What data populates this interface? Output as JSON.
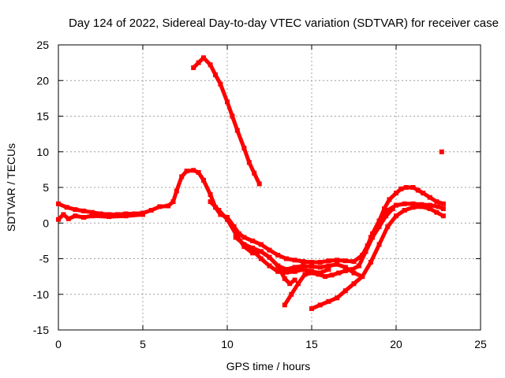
{
  "chart_data": {
    "type": "scatter",
    "title": "Day 124 of 2022, Sidereal Day-to-day VTEC variation (SDTVAR) for receiver case",
    "xlabel": "GPS time / hours",
    "ylabel": "SDTVAR / TECUs",
    "xlim": [
      0,
      25
    ],
    "ylim": [
      -15,
      25
    ],
    "xticks": [
      0,
      5,
      10,
      15,
      20,
      25
    ],
    "yticks": [
      -15,
      -10,
      -5,
      0,
      5,
      10,
      15,
      20,
      25
    ],
    "xtick_labels": [
      "0",
      "5",
      "10",
      "15",
      "20",
      "25"
    ],
    "ytick_labels": [
      "-15",
      "-10",
      "-5",
      "0",
      "5",
      "10",
      "15",
      "20",
      "25"
    ],
    "grid": true,
    "marker_color": "#ff0000",
    "series": [
      {
        "name": "track-main",
        "x": [
          0.0,
          0.5,
          1.0,
          1.5,
          2.0,
          2.5,
          3.0,
          3.5,
          4.0,
          4.5,
          5.0,
          5.5,
          6.0,
          6.5,
          6.8,
          7.0,
          7.3,
          7.6,
          8.0,
          8.3,
          8.6,
          9.0,
          9.3,
          9.6,
          10.0,
          10.4,
          10.7,
          11.0,
          11.5,
          12.0,
          12.5,
          13.0,
          13.5,
          14.0,
          14.5,
          15.0,
          15.5,
          16.0,
          16.5,
          17.0,
          17.5,
          18.0,
          18.3,
          18.6,
          19.0,
          19.3,
          19.6,
          20.0,
          20.3,
          20.6,
          21.0,
          21.3,
          21.6,
          22.0,
          22.4,
          22.8
        ],
        "y": [
          2.7,
          2.2,
          1.9,
          1.7,
          1.5,
          1.3,
          1.2,
          1.2,
          1.3,
          1.3,
          1.4,
          1.8,
          2.3,
          2.4,
          3.0,
          4.5,
          6.5,
          7.3,
          7.4,
          7.1,
          6.0,
          4.0,
          2.2,
          1.2,
          0.8,
          -0.5,
          -1.5,
          -2.0,
          -2.5,
          -3.0,
          -3.8,
          -4.5,
          -5.0,
          -5.2,
          -5.4,
          -5.5,
          -5.5,
          -5.3,
          -5.2,
          -5.3,
          -5.4,
          -4.5,
          -3.2,
          -1.5,
          0.3,
          2.0,
          3.3,
          4.2,
          4.8,
          5.0,
          5.0,
          4.6,
          4.2,
          3.6,
          3.0,
          2.7
        ]
      },
      {
        "name": "track-lower-a",
        "x": [
          0.0,
          0.3,
          0.6,
          1.0,
          1.5,
          2.0,
          3.0,
          4.0,
          5.0
        ],
        "y": [
          0.5,
          1.2,
          0.6,
          1.0,
          0.8,
          1.0,
          0.9,
          1.0,
          1.2
        ]
      },
      {
        "name": "track-drop-a",
        "x": [
          9.0,
          9.5,
          10.0,
          10.5,
          11.0,
          11.5,
          12.0,
          12.5,
          13.0,
          13.4,
          13.7,
          14.0
        ],
        "y": [
          3.0,
          1.8,
          0.5,
          -1.5,
          -3.3,
          -4.2,
          -4.0,
          -4.8,
          -6.0,
          -7.8,
          -8.5,
          -8.0
        ]
      },
      {
        "name": "track-drop-b",
        "x": [
          10.5,
          11.0,
          11.5,
          12.0,
          12.5,
          13.0,
          13.5,
          14.0,
          14.5,
          15.0,
          15.5,
          16.0,
          16.5,
          17.0,
          17.5,
          18.0
        ],
        "y": [
          -2.0,
          -3.0,
          -3.5,
          -4.0,
          -4.8,
          -6.0,
          -6.5,
          -6.2,
          -6.0,
          -6.1,
          -6.2,
          -6.0,
          -5.8,
          -6.2,
          -7.0,
          -7.5
        ]
      },
      {
        "name": "track-drop-c",
        "x": [
          11.5,
          12.0,
          12.5,
          13.0,
          13.5,
          14.0,
          14.5,
          15.0,
          15.5,
          16.0
        ],
        "y": [
          -3.8,
          -5.0,
          -6.0,
          -6.8,
          -6.9,
          -6.8,
          -6.5,
          -6.8,
          -7.0,
          -6.5
        ]
      },
      {
        "name": "track-deep",
        "x": [
          13.4,
          13.8,
          14.2,
          14.6,
          15.0,
          15.4,
          15.8,
          16.2,
          16.6,
          17.0,
          17.4,
          17.8,
          18.2,
          18.6,
          19.0,
          19.4,
          19.8
        ],
        "y": [
          -11.5,
          -10.0,
          -8.5,
          -7.2,
          -7.0,
          -7.2,
          -7.5,
          -7.3,
          -7.0,
          -6.7,
          -6.5,
          -6.0,
          -4.0,
          -2.0,
          -0.5,
          1.0,
          2.0
        ]
      },
      {
        "name": "track-recovery-low",
        "x": [
          15.0,
          15.5,
          16.0,
          16.5,
          17.0,
          17.5,
          18.0,
          18.5,
          19.0,
          19.5,
          20.0,
          20.5,
          21.0,
          21.5,
          22.0,
          22.4,
          22.8
        ],
        "y": [
          -12.0,
          -11.5,
          -11.0,
          -10.5,
          -9.5,
          -8.5,
          -7.5,
          -5.5,
          -3.0,
          -0.5,
          1.0,
          1.8,
          2.2,
          2.3,
          2.0,
          1.5,
          1.0
        ]
      },
      {
        "name": "track-recovery-mid",
        "x": [
          18.5,
          19.0,
          19.5,
          20.0,
          20.5,
          21.0,
          21.5,
          22.0,
          22.5,
          22.8
        ],
        "y": [
          -2.0,
          0.3,
          1.8,
          2.5,
          2.7,
          2.7,
          2.6,
          2.5,
          2.3,
          2.0
        ]
      },
      {
        "name": "track-high-arc",
        "x": [
          8.0,
          8.3,
          8.6,
          9.0,
          9.3,
          9.6,
          10.0,
          10.3,
          10.6,
          11.0,
          11.3,
          11.6,
          11.9
        ],
        "y": [
          21.8,
          22.5,
          23.2,
          22.2,
          20.8,
          19.5,
          17.0,
          15.0,
          13.0,
          10.5,
          8.5,
          7.0,
          5.5
        ]
      },
      {
        "name": "point-isolated",
        "x": [
          22.7
        ],
        "y": [
          10.0
        ]
      }
    ]
  }
}
